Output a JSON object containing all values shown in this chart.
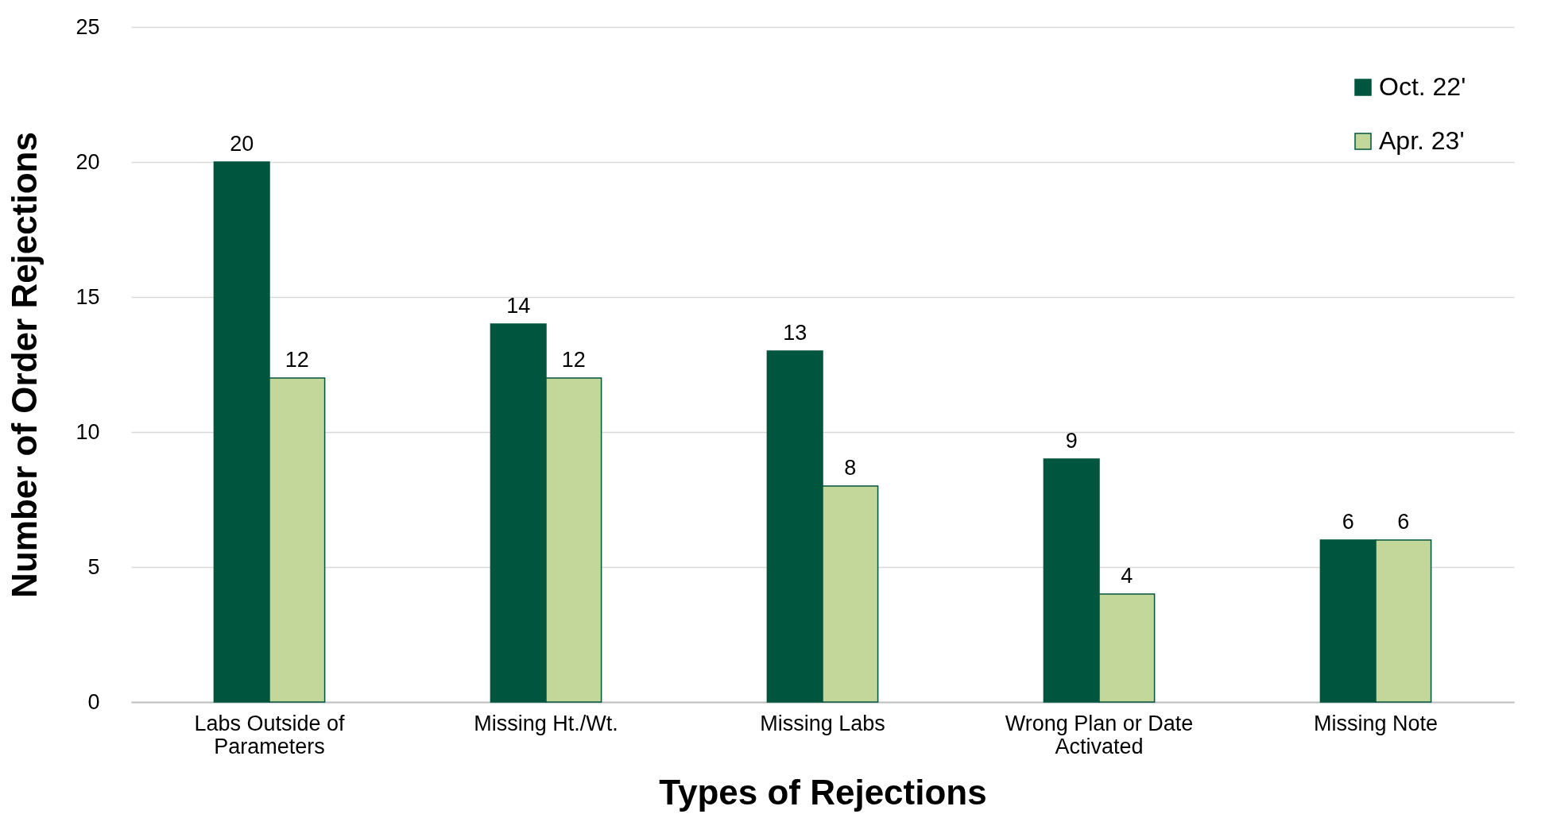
{
  "chart_data": {
    "type": "bar",
    "xlabel": "Types of Rejections",
    "ylabel": "Number of Order Rejections",
    "categories": [
      "Labs Outside of Parameters",
      "Missing Ht./Wt.",
      "Missing Labs",
      "Wrong Plan or Date Activated",
      "Missing Note"
    ],
    "series": [
      {
        "name": "Oct. 22'",
        "color": "#00553f",
        "values": [
          20,
          14,
          13,
          9,
          6
        ]
      },
      {
        "name": "Apr. 23'",
        "color": "#c4d79b",
        "values": [
          12,
          12,
          8,
          4,
          6
        ]
      }
    ],
    "ylim": [
      0,
      25
    ],
    "yticks": [
      0,
      5,
      10,
      15,
      20,
      25
    ],
    "grid": "y",
    "legend": "top right",
    "data_labels": true
  }
}
